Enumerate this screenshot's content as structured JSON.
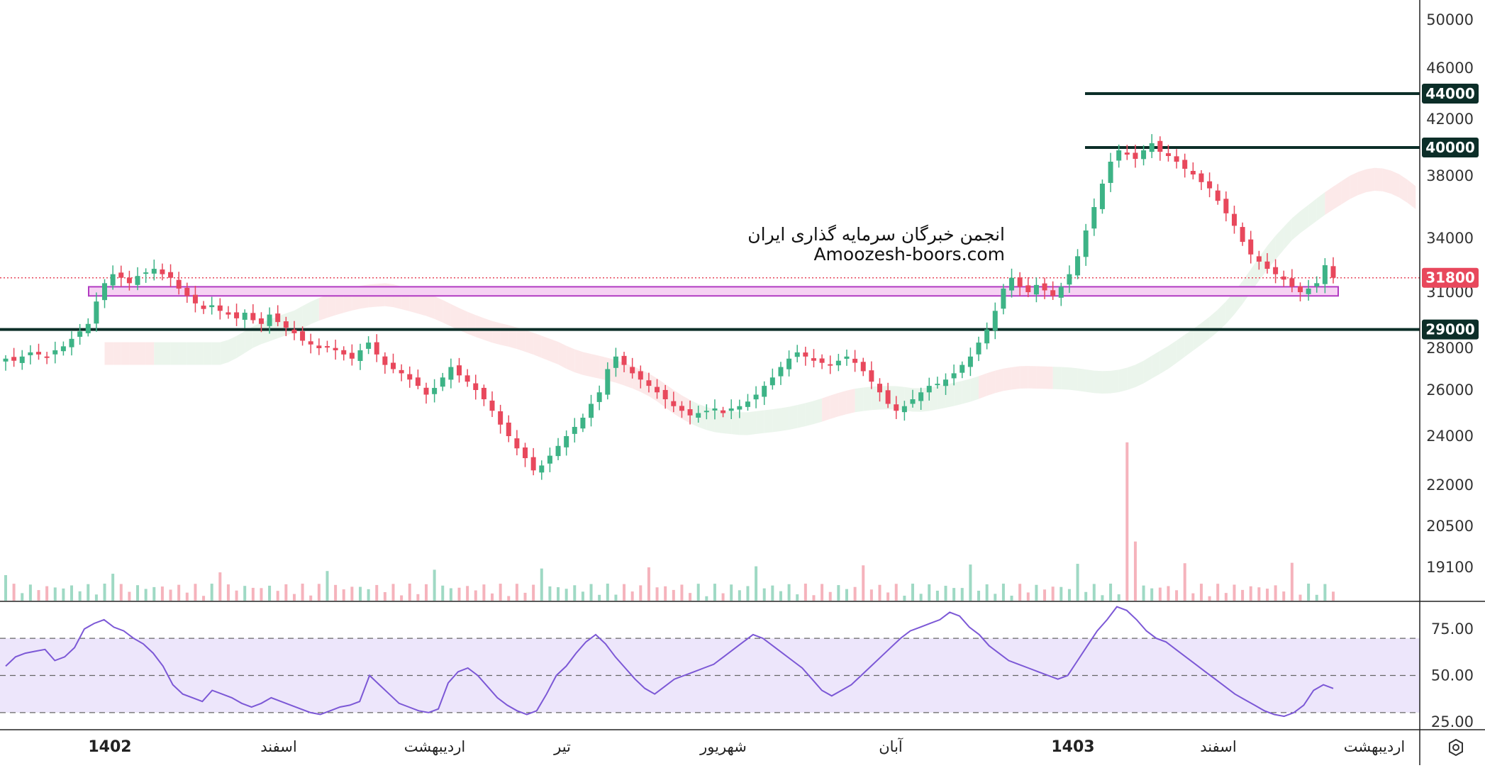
{
  "watermark": {
    "line1": "انجمن خبرگان سرمایه گذاری ایران",
    "line2": "Amoozesh-boors.com"
  },
  "colors": {
    "up": "#3db386",
    "down": "#e8485c",
    "support": "#0c2e28",
    "zone_fill": "#f6d2f3",
    "zone_stroke": "#b13bc2",
    "rsi_line": "#7c58d6",
    "rsi_band": "#ede6fb",
    "cloud_green": "#e4f2e6",
    "cloud_red": "#fbe2e2",
    "price_line": "#e8485c"
  },
  "axis_icon": "gear-hex-icon",
  "chart_data": [
    {
      "type": "candlestick",
      "title": "",
      "price_axis_ticks": [
        50000,
        46000,
        42000,
        38000,
        34000,
        31000,
        28000,
        26000,
        24000,
        22000,
        20500,
        19100
      ],
      "price_axis_labels": [
        "50000",
        "46000",
        "42000",
        "38000",
        "34000",
        "31000",
        "28000",
        "26000",
        "24000",
        "22000",
        "20500",
        "19100"
      ],
      "x_labels": [
        "1402",
        "اسفند",
        "اردیبهشت",
        "تیر",
        "شهریور",
        "آبان",
        "1403",
        "اسفند",
        "اردیبهشت"
      ],
      "last_price": 31800,
      "last_price_label": "31800",
      "horizontal_levels": [
        {
          "value": 44000,
          "label": "44000"
        },
        {
          "value": 40000,
          "label": "40000"
        },
        {
          "value": 29000,
          "label": "29000"
        }
      ],
      "support_zone": {
        "low": 30800,
        "high": 31300
      },
      "indicators": [
        "Ichimoku cloud",
        "Volume"
      ],
      "series_close": [
        27500,
        27400,
        27600,
        27800,
        27700,
        27600,
        27900,
        28100,
        28500,
        28900,
        29300,
        30500,
        31500,
        32000,
        31800,
        31500,
        31900,
        32100,
        32300,
        32000,
        31800,
        31200,
        30800,
        30400,
        30100,
        30300,
        30000,
        29800,
        29600,
        29900,
        29500,
        29300,
        29800,
        29400,
        29100,
        28800,
        28400,
        28200,
        28000,
        28100,
        27900,
        27700,
        27500,
        27900,
        28300,
        27700,
        27200,
        27000,
        26800,
        26500,
        26200,
        25800,
        26100,
        26600,
        27100,
        26700,
        26400,
        26000,
        25600,
        25100,
        24500,
        24000,
        23500,
        23100,
        22600,
        22800,
        23200,
        23600,
        24000,
        24400,
        24800,
        25400,
        25900,
        27000,
        27600,
        27200,
        26800,
        26500,
        26200,
        25900,
        25600,
        25300,
        25100,
        24900,
        25000,
        25100,
        25200,
        25000,
        25200,
        25300,
        25500,
        25800,
        26200,
        26600,
        27100,
        27500,
        27800,
        27600,
        27400,
        27300,
        27200,
        27400,
        27600,
        27300,
        26900,
        26400,
        25900,
        25400,
        25100,
        25300,
        25600,
        25900,
        26200,
        26300,
        26500,
        26800,
        27200,
        27600,
        28300,
        29000,
        30000,
        31200,
        31800,
        31300,
        31000,
        31400,
        31100,
        30800,
        31300,
        32000,
        33000,
        34500,
        36000,
        37500,
        39000,
        39800,
        39500,
        39200,
        39800,
        40300,
        39700,
        39400,
        39000,
        38500,
        38100,
        37600,
        37200,
        36400,
        35600,
        34800,
        33800,
        33100,
        32700,
        32300,
        32000,
        31700,
        31300,
        31000,
        31200,
        31500,
        32500,
        31800
      ]
    },
    {
      "type": "line",
      "title": "",
      "name": "RSI",
      "axis_ticks": [
        75,
        50,
        25
      ],
      "axis_labels": [
        "75.00",
        "50.00",
        "25.00"
      ],
      "band": [
        30,
        70
      ],
      "values": [
        55,
        60,
        62,
        63,
        64,
        58,
        60,
        65,
        75,
        78,
        80,
        76,
        74,
        70,
        67,
        62,
        55,
        45,
        40,
        38,
        36,
        42,
        40,
        38,
        35,
        33,
        35,
        38,
        36,
        34,
        32,
        30,
        29,
        31,
        33,
        34,
        36,
        50,
        45,
        40,
        35,
        33,
        31,
        30,
        32,
        46,
        52,
        54,
        50,
        44,
        38,
        34,
        31,
        29,
        31,
        40,
        50,
        55,
        62,
        68,
        72,
        67,
        60,
        54,
        48,
        43,
        40,
        44,
        48,
        50,
        52,
        54,
        56,
        60,
        64,
        68,
        72,
        70,
        66,
        62,
        58,
        54,
        48,
        42,
        39,
        42,
        45,
        50,
        55,
        60,
        65,
        70,
        74,
        76,
        78,
        80,
        84,
        82,
        76,
        72,
        66,
        62,
        58,
        56,
        54,
        52,
        50,
        48,
        50,
        58,
        66,
        74,
        80,
        87,
        85,
        80,
        74,
        70,
        68,
        64,
        60,
        56,
        52,
        48,
        44,
        40,
        37,
        34,
        31,
        29,
        28,
        30,
        34,
        42,
        45,
        43
      ]
    }
  ]
}
